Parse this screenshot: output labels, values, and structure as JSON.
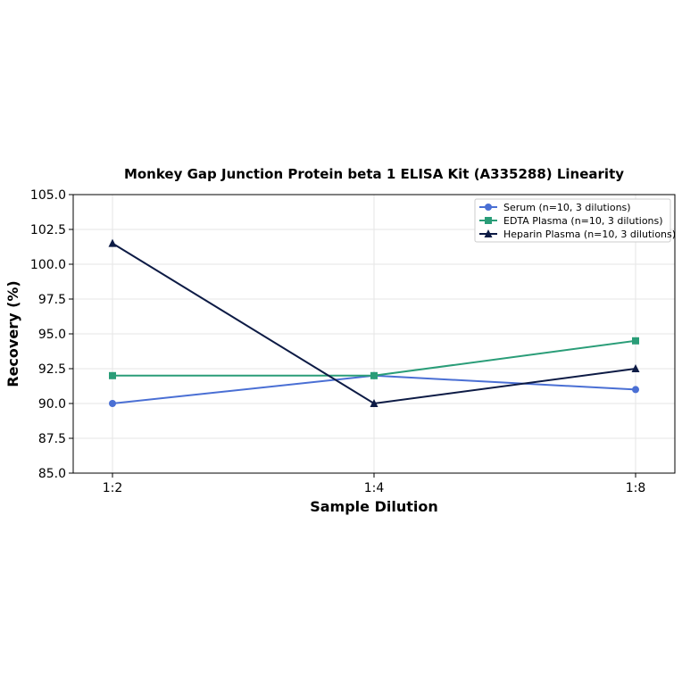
{
  "chart_data": {
    "type": "line",
    "title": "Monkey Gap Junction Protein beta 1 ELISA Kit (A335288) Linearity",
    "xlabel": "Sample Dilution",
    "ylabel": "Recovery (%)",
    "categories": [
      "1:2",
      "1:4",
      "1:8"
    ],
    "ylim": [
      85.0,
      105.0
    ],
    "yticks": [
      "85.0",
      "87.5",
      "90.0",
      "92.5",
      "95.0",
      "97.5",
      "100.0",
      "102.5",
      "105.0"
    ],
    "grid": true,
    "legend_position": "top-right",
    "series": [
      {
        "name": "Serum (n=10, 3 dilutions)",
        "values": [
          90.0,
          92.0,
          91.0
        ],
        "color": "#4a6fd4",
        "marker": "circle"
      },
      {
        "name": "EDTA Plasma (n=10, 3 dilutions)",
        "values": [
          92.0,
          92.0,
          94.5
        ],
        "color": "#2a9d78",
        "marker": "square"
      },
      {
        "name": "Heparin Plasma (n=10, 3 dilutions)",
        "values": [
          101.5,
          90.0,
          92.5
        ],
        "color": "#0d1b45",
        "marker": "triangle"
      }
    ]
  }
}
